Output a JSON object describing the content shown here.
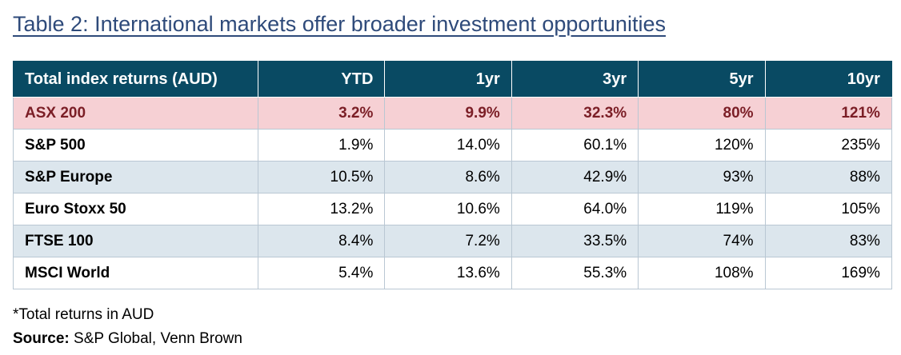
{
  "title": "Table 2: International markets offer broader investment opportunities",
  "table": {
    "columns": [
      "Total index returns (AUD)",
      "YTD",
      "1yr",
      "3yr",
      "5yr",
      "10yr"
    ],
    "rows": [
      {
        "name": "ASX 200",
        "values": [
          "3.2%",
          "9.9%",
          "32.3%",
          "80%",
          "121%"
        ],
        "highlight": true
      },
      {
        "name": "S&P 500",
        "values": [
          "1.9%",
          "14.0%",
          "60.1%",
          "120%",
          "235%"
        ]
      },
      {
        "name": "S&P Europe",
        "values": [
          "10.5%",
          "8.6%",
          "42.9%",
          "93%",
          "88%"
        ]
      },
      {
        "name": "Euro Stoxx 50",
        "values": [
          "13.2%",
          "10.6%",
          "64.0%",
          "119%",
          "105%"
        ]
      },
      {
        "name": "FTSE 100",
        "values": [
          "8.4%",
          "7.2%",
          "33.5%",
          "74%",
          "83%"
        ]
      },
      {
        "name": "MSCI World",
        "values": [
          "5.4%",
          "13.6%",
          "55.3%",
          "108%",
          "169%"
        ]
      }
    ]
  },
  "footnote": "*Total returns in AUD",
  "source": {
    "label": "Source:",
    "text": " S&P Global, Venn Brown"
  },
  "colors": {
    "title": "#2e4a7a",
    "header_bg": "#094a63",
    "highlight_bg": "#f6d0d4",
    "highlight_text": "#7b1e26",
    "band_bg": "#dce6ed"
  }
}
